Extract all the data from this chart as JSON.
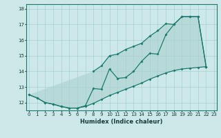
{
  "xlabel": "Humidex (Indice chaleur)",
  "bg_color": "#cde8e8",
  "grid_color": "#a8d0d0",
  "line_color": "#1a7a6e",
  "xlim": [
    0,
    23
  ],
  "ylim": [
    11.5,
    18.3
  ],
  "yticks": [
    12,
    13,
    14,
    15,
    16,
    17,
    18
  ],
  "xticks": [
    0,
    1,
    2,
    3,
    4,
    5,
    6,
    7,
    8,
    9,
    10,
    11,
    12,
    13,
    14,
    15,
    16,
    17,
    18,
    19,
    20,
    21,
    22,
    23
  ],
  "y_bottom": [
    12.5,
    12.3,
    12.0,
    11.9,
    11.75,
    11.65,
    11.65,
    11.75,
    11.95,
    12.2,
    12.45,
    12.65,
    12.85,
    13.05,
    13.25,
    13.5,
    13.7,
    13.9,
    14.05,
    14.15,
    14.2,
    14.25,
    14.3
  ],
  "y_middle": [
    12.5,
    12.3,
    12.0,
    11.9,
    11.75,
    11.65,
    11.65,
    11.8,
    12.9,
    12.85,
    14.15,
    13.55,
    13.6,
    14.0,
    14.65,
    15.15,
    15.1,
    16.35,
    17.0,
    17.5,
    17.5,
    17.5,
    14.3
  ],
  "y_top": [
    null,
    null,
    null,
    null,
    null,
    null,
    null,
    null,
    14.0,
    14.35,
    15.0,
    15.1,
    15.4,
    15.6,
    15.8,
    16.25,
    16.6,
    17.05,
    17.0,
    17.5,
    17.5,
    17.5,
    14.3
  ]
}
